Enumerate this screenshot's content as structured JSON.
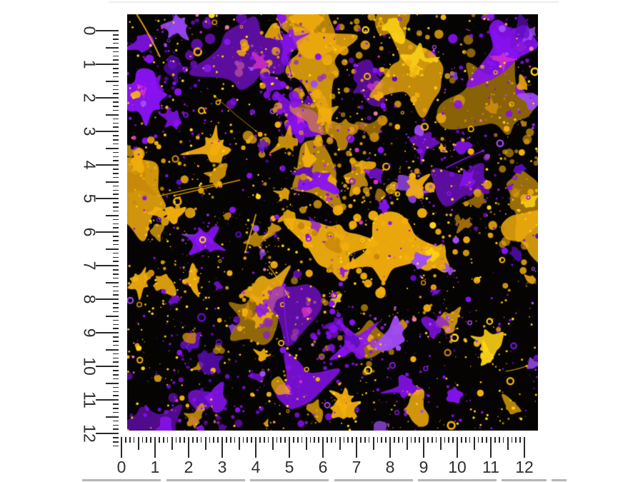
{
  "page": {
    "background": "#ffffff"
  },
  "swatch": {
    "background": "#060402",
    "palette": {
      "purple": "#8812F2",
      "purple_dark": "#5E0CC2",
      "purple_light": "#A04BF7",
      "gold": "#F2AE0D",
      "gold_dark": "#C8880A",
      "yellow": "#FFD316",
      "magenta": "#D832C8",
      "pink": "#E87AA4"
    }
  },
  "pattern": {
    "type": "paint-splatter",
    "seed": 20240613,
    "large_splats": 30,
    "medium_splats": 110,
    "small_dots": 210,
    "specks": 850,
    "magenta_dots": 26,
    "streaks": 11
  },
  "rulers": {
    "tick_color": "#2a2a2a",
    "label_color": "#2f2f2f",
    "left": {
      "labels": [
        "0",
        "1",
        "2",
        "3",
        "4",
        "5",
        "6",
        "7",
        "8",
        "9",
        "10",
        "11",
        "12"
      ]
    },
    "bottom": {
      "labels": [
        "0",
        "1",
        "2",
        "3",
        "4",
        "5",
        "6",
        "7",
        "8",
        "9",
        "10",
        "11",
        "12"
      ]
    }
  },
  "dividers": {
    "top": "#ededed",
    "bottom": "#b5b5b5"
  }
}
